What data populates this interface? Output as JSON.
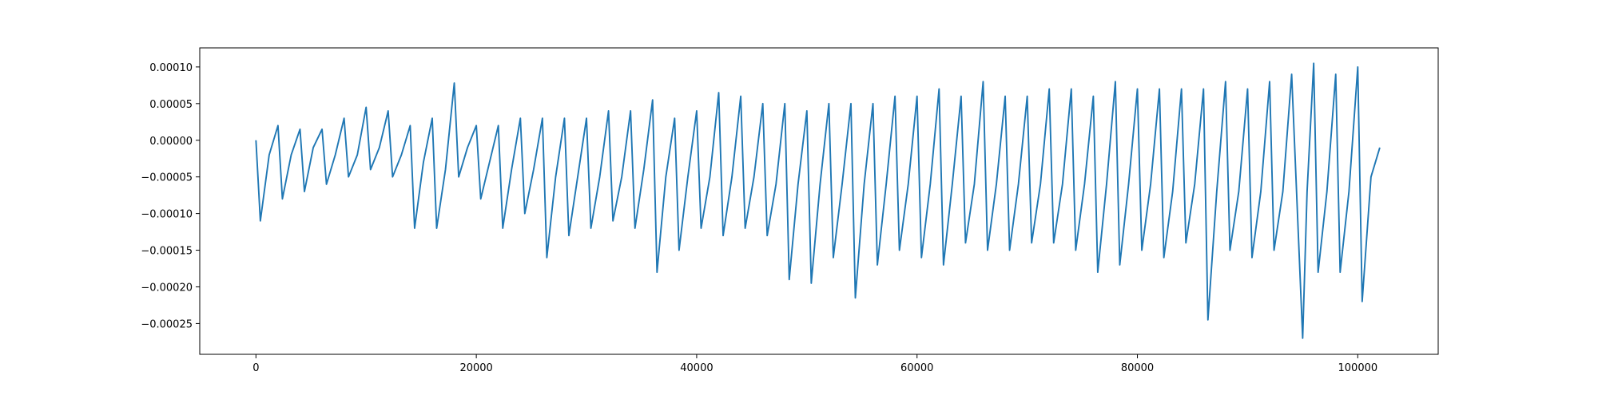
{
  "chart_data": {
    "type": "line",
    "x": [
      0,
      400,
      1200,
      2000,
      2400,
      3200,
      4000,
      4400,
      5200,
      6000,
      6400,
      7200,
      8000,
      8400,
      9200,
      10000,
      10400,
      11200,
      12000,
      12400,
      13200,
      14000,
      14400,
      15200,
      16000,
      16400,
      17200,
      18000,
      18400,
      19200,
      20000,
      20400,
      21200,
      22000,
      22400,
      23200,
      24000,
      24400,
      25200,
      26000,
      26400,
      27200,
      28000,
      28400,
      29200,
      30000,
      30400,
      31200,
      32000,
      32400,
      33200,
      34000,
      34400,
      35200,
      36000,
      36400,
      37200,
      38000,
      38400,
      39200,
      40000,
      40400,
      41200,
      42000,
      42400,
      43200,
      44000,
      44400,
      45200,
      46000,
      46400,
      47200,
      48000,
      48400,
      49200,
      50000,
      50400,
      51200,
      52000,
      52400,
      53200,
      54000,
      54400,
      55200,
      56000,
      56400,
      57200,
      58000,
      58400,
      59200,
      60000,
      60400,
      61200,
      62000,
      62400,
      63200,
      64000,
      64400,
      65200,
      66000,
      66400,
      67200,
      68000,
      68400,
      69200,
      70000,
      70400,
      71200,
      72000,
      72400,
      73200,
      74000,
      74400,
      75200,
      76000,
      76400,
      77200,
      78000,
      78400,
      79200,
      80000,
      80400,
      81200,
      82000,
      82400,
      83200,
      84000,
      84400,
      85200,
      86000,
      86400,
      87200,
      88000,
      88400,
      89200,
      90000,
      90400,
      91200,
      92000,
      92400,
      93200,
      94000,
      95000,
      95400,
      96000,
      96400,
      97200,
      98000,
      98400,
      99200,
      100000,
      100400,
      101200,
      102000
    ],
    "series": [
      {
        "color": "#1f77b4",
        "values": [
          0,
          -0.00011,
          -2e-05,
          2e-05,
          -8e-05,
          -2e-05,
          1.5e-05,
          -7e-05,
          -1e-05,
          1.5e-05,
          -6e-05,
          -2e-05,
          3e-05,
          -5e-05,
          -2e-05,
          4.5e-05,
          -4e-05,
          -1e-05,
          4e-05,
          -5e-05,
          -2e-05,
          2e-05,
          -0.00012,
          -3e-05,
          3e-05,
          -0.00012,
          -4e-05,
          7.8e-05,
          -5e-05,
          -1e-05,
          2e-05,
          -8e-05,
          -3e-05,
          2e-05,
          -0.00012,
          -4e-05,
          3e-05,
          -0.0001,
          -4e-05,
          3e-05,
          -0.00016,
          -5e-05,
          3e-05,
          -0.00013,
          -5e-05,
          3e-05,
          -0.00012,
          -5e-05,
          4e-05,
          -0.00011,
          -5e-05,
          4e-05,
          -0.00012,
          -4e-05,
          5.5e-05,
          -0.00018,
          -5e-05,
          3e-05,
          -0.00015,
          -5e-05,
          4e-05,
          -0.00012,
          -5e-05,
          6.5e-05,
          -0.00013,
          -5e-05,
          6e-05,
          -0.00012,
          -5e-05,
          5e-05,
          -0.00013,
          -6e-05,
          5e-05,
          -0.00019,
          -6e-05,
          4e-05,
          -0.000195,
          -6e-05,
          5e-05,
          -0.00016,
          -6e-05,
          5e-05,
          -0.000215,
          -6e-05,
          5e-05,
          -0.00017,
          -6e-05,
          6e-05,
          -0.00015,
          -6e-05,
          6e-05,
          -0.00016,
          -6e-05,
          7e-05,
          -0.00017,
          -6e-05,
          6e-05,
          -0.00014,
          -6e-05,
          8e-05,
          -0.00015,
          -6e-05,
          6e-05,
          -0.00015,
          -6e-05,
          6e-05,
          -0.00014,
          -6e-05,
          7e-05,
          -0.00014,
          -6e-05,
          7e-05,
          -0.00015,
          -6e-05,
          6e-05,
          -0.00018,
          -6e-05,
          8e-05,
          -0.00017,
          -6e-05,
          7e-05,
          -0.00015,
          -6e-05,
          7e-05,
          -0.00016,
          -7e-05,
          7e-05,
          -0.00014,
          -6e-05,
          7e-05,
          -0.000245,
          -7e-05,
          8e-05,
          -0.00015,
          -7e-05,
          7e-05,
          -0.00016,
          -7e-05,
          8e-05,
          -0.00015,
          -7e-05,
          9e-05,
          -0.00027,
          -7e-05,
          0.000105,
          -0.00018,
          -7e-05,
          9e-05,
          -0.00018,
          -7e-05,
          0.0001,
          -0.00022,
          -5e-05,
          -1e-05
        ]
      }
    ],
    "xlim": [
      -5100,
      107300
    ],
    "ylim": [
      -0.000292,
      0.000126
    ],
    "xticks": [
      0,
      20000,
      40000,
      60000,
      80000,
      100000
    ],
    "yticks": [
      {
        "value": -0.00025,
        "label": "−0.00025"
      },
      {
        "value": -0.0002,
        "label": "−0.00020"
      },
      {
        "value": -0.00015,
        "label": "−0.00015"
      },
      {
        "value": -0.0001,
        "label": "−0.00010"
      },
      {
        "value": -5e-05,
        "label": "−0.00005"
      },
      {
        "value": 0,
        "label": "0.00000"
      },
      {
        "value": 5e-05,
        "label": "0.00005"
      },
      {
        "value": 0.0001,
        "label": "0.00010"
      }
    ]
  }
}
